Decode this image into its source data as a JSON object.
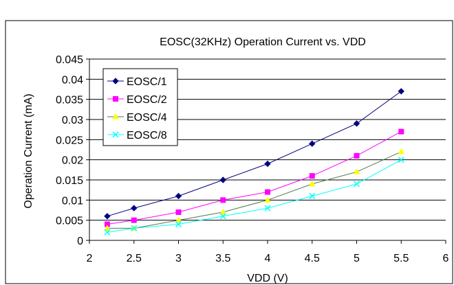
{
  "chart_data": {
    "type": "line",
    "title": "EOSC(32KHz) Operation Current  vs. VDD",
    "xlabel": "VDD (V)",
    "ylabel": "Operation Current (mA)",
    "xlim": [
      2,
      6
    ],
    "ylim": [
      0,
      0.045
    ],
    "x_ticks": [
      "2",
      "2.5",
      "3",
      "3.5",
      "4",
      "4.5",
      "5",
      "5.5",
      "6"
    ],
    "y_ticks": [
      "0",
      "0.005",
      "0.01",
      "0.015",
      "0.02",
      "0.025",
      "0.03",
      "0.035",
      "0.04",
      "0.045"
    ],
    "grid": "horizontal",
    "legend": "top-left",
    "x": [
      2.2,
      2.5,
      3,
      3.5,
      4,
      4.5,
      5,
      5.5
    ],
    "series": [
      {
        "name": "EOSC/1",
        "color": "#000080",
        "marker": "diamond",
        "values": [
          0.006,
          0.008,
          0.011,
          0.015,
          0.019,
          0.024,
          0.029,
          0.037
        ]
      },
      {
        "name": "EOSC/2",
        "color": "#ff00ff",
        "marker": "square",
        "values": [
          0.004,
          0.005,
          0.007,
          0.01,
          0.012,
          0.016,
          0.021,
          0.027
        ]
      },
      {
        "name": "EOSC/4",
        "color": "#ffff00",
        "marker": "triangle",
        "line_color": "#4a7a4a",
        "values": [
          0.003,
          0.003,
          0.005,
          0.007,
          0.01,
          0.014,
          0.017,
          0.022
        ]
      },
      {
        "name": "EOSC/8",
        "color": "#00ffff",
        "marker": "x",
        "values": [
          0.002,
          0.003,
          0.004,
          0.006,
          0.008,
          0.011,
          0.014,
          0.02
        ]
      }
    ]
  }
}
